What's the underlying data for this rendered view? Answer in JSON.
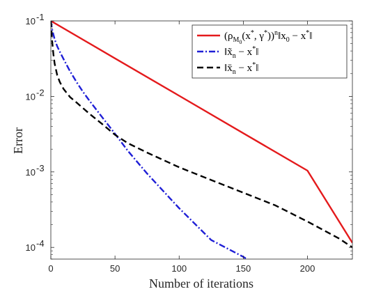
{
  "chart_data": {
    "type": "line",
    "xlabel": "Number of iterations",
    "ylabel": "Error",
    "xlim": [
      0,
      235
    ],
    "ylim": [
      7e-05,
      0.1
    ],
    "y_scale": "log",
    "x_ticks": [
      {
        "value": 0,
        "label": "0"
      },
      {
        "value": 50,
        "label": "50"
      },
      {
        "value": 100,
        "label": "100"
      },
      {
        "value": 150,
        "label": "150"
      },
      {
        "value": 200,
        "label": "200"
      }
    ],
    "y_ticks": [
      {
        "value": 0.1,
        "base": "10",
        "exp": "-1"
      },
      {
        "value": 0.01,
        "base": "10",
        "exp": "-2"
      },
      {
        "value": 0.001,
        "base": "10",
        "exp": "-3"
      },
      {
        "value": 0.0001,
        "base": "10",
        "exp": "-4"
      }
    ],
    "grid": false,
    "legend_position": "top-right",
    "series": [
      {
        "name": "(ρ_{M₀}(x*, γ*))ⁿ‖x₀ − x*‖",
        "color": "#e41a1c",
        "dash": "solid",
        "x": [
          0,
          50,
          100,
          150,
          200,
          235
        ],
        "y": [
          0.1,
          0.0319,
          0.0102,
          0.00325,
          0.00104,
          0.000115
        ]
      },
      {
        "name": "‖x̃ₙ − x*‖",
        "color": "#1f1fd6",
        "dash": "dashdot",
        "x": [
          0,
          1,
          2,
          3,
          5,
          7,
          10,
          15,
          20,
          25,
          30,
          40,
          50,
          60,
          75,
          100,
          125,
          150,
          154
        ],
        "y": [
          0.1,
          0.078,
          0.066,
          0.057,
          0.046,
          0.039,
          0.031,
          0.0215,
          0.0155,
          0.0115,
          0.0088,
          0.0053,
          0.0032,
          0.0019,
          0.00095,
          0.00033,
          0.000125,
          7.5e-05,
          6.8e-05
        ]
      },
      {
        "name": "‖x̄ₙ − x*‖",
        "color": "#000000",
        "dash": "dash",
        "x": [
          0,
          1,
          2,
          3,
          5,
          7,
          10,
          15,
          20,
          30,
          40,
          50,
          60,
          75,
          100,
          125,
          150,
          175,
          200,
          225,
          235
        ],
        "y": [
          0.1,
          0.055,
          0.036,
          0.027,
          0.019,
          0.0155,
          0.0125,
          0.0098,
          0.0083,
          0.0059,
          0.0043,
          0.0031,
          0.0024,
          0.0018,
          0.00115,
          0.00078,
          0.00053,
          0.00036,
          0.00022,
          0.00013,
          0.0001
        ]
      }
    ]
  }
}
